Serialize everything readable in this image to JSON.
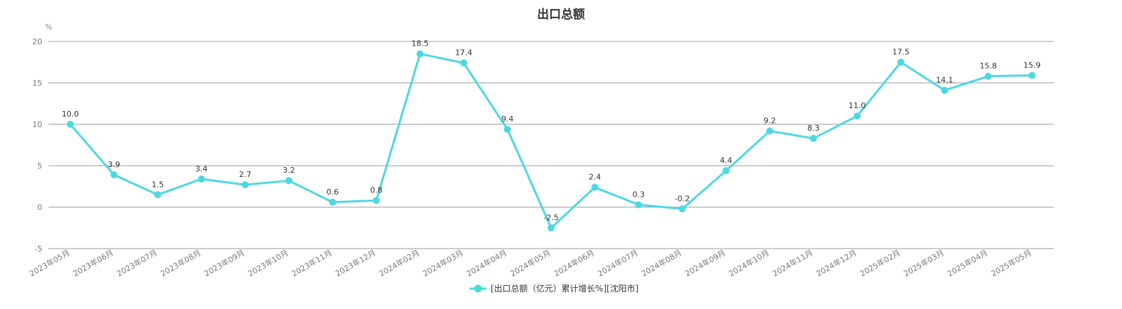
{
  "chart_data": {
    "type": "line",
    "title": "出口总额",
    "ylabel": "%",
    "xlabel": "",
    "ylim": [
      -5,
      20
    ],
    "yticks": [
      -5,
      0,
      5,
      10,
      15,
      20
    ],
    "grid": true,
    "legend_position": "bottom",
    "colors": {
      "series": "#4dd8e0",
      "grid": "#999999",
      "axis_text": "#777777"
    },
    "categories": [
      "2023年05月",
      "2023年06月",
      "2023年07月",
      "2023年08月",
      "2023年09月",
      "2023年10月",
      "2023年11月",
      "2023年12月",
      "2024年02月",
      "2024年03月",
      "2024年04月",
      "2024年05月",
      "2024年06月",
      "2024年07月",
      "2024年08月",
      "2024年09月",
      "2024年10月",
      "2024年11月",
      "2024年12月",
      "2025年02月",
      "2025年03月",
      "2025年04月",
      "2025年05月"
    ],
    "series": [
      {
        "name": "[出口总额（亿元）累计增长%][沈阳市]",
        "values": [
          10.0,
          3.9,
          1.5,
          3.4,
          2.7,
          3.2,
          0.6,
          0.8,
          18.5,
          17.4,
          9.4,
          -2.5,
          2.4,
          0.3,
          -0.2,
          4.4,
          9.2,
          8.3,
          11.0,
          17.5,
          14.1,
          15.8,
          15.9
        ],
        "labels": [
          "10.0",
          "3.9",
          "1.5",
          "3.4",
          "2.7",
          "3.2",
          "0.6",
          "0.8",
          "18.5",
          "17.4",
          "9.4",
          "-2.5",
          "2.4",
          "0.3",
          "-0.2",
          "4.4",
          "9.2",
          "8.3",
          "11.0",
          "17.5",
          "14.1",
          "15.8",
          "15.9"
        ]
      }
    ]
  }
}
